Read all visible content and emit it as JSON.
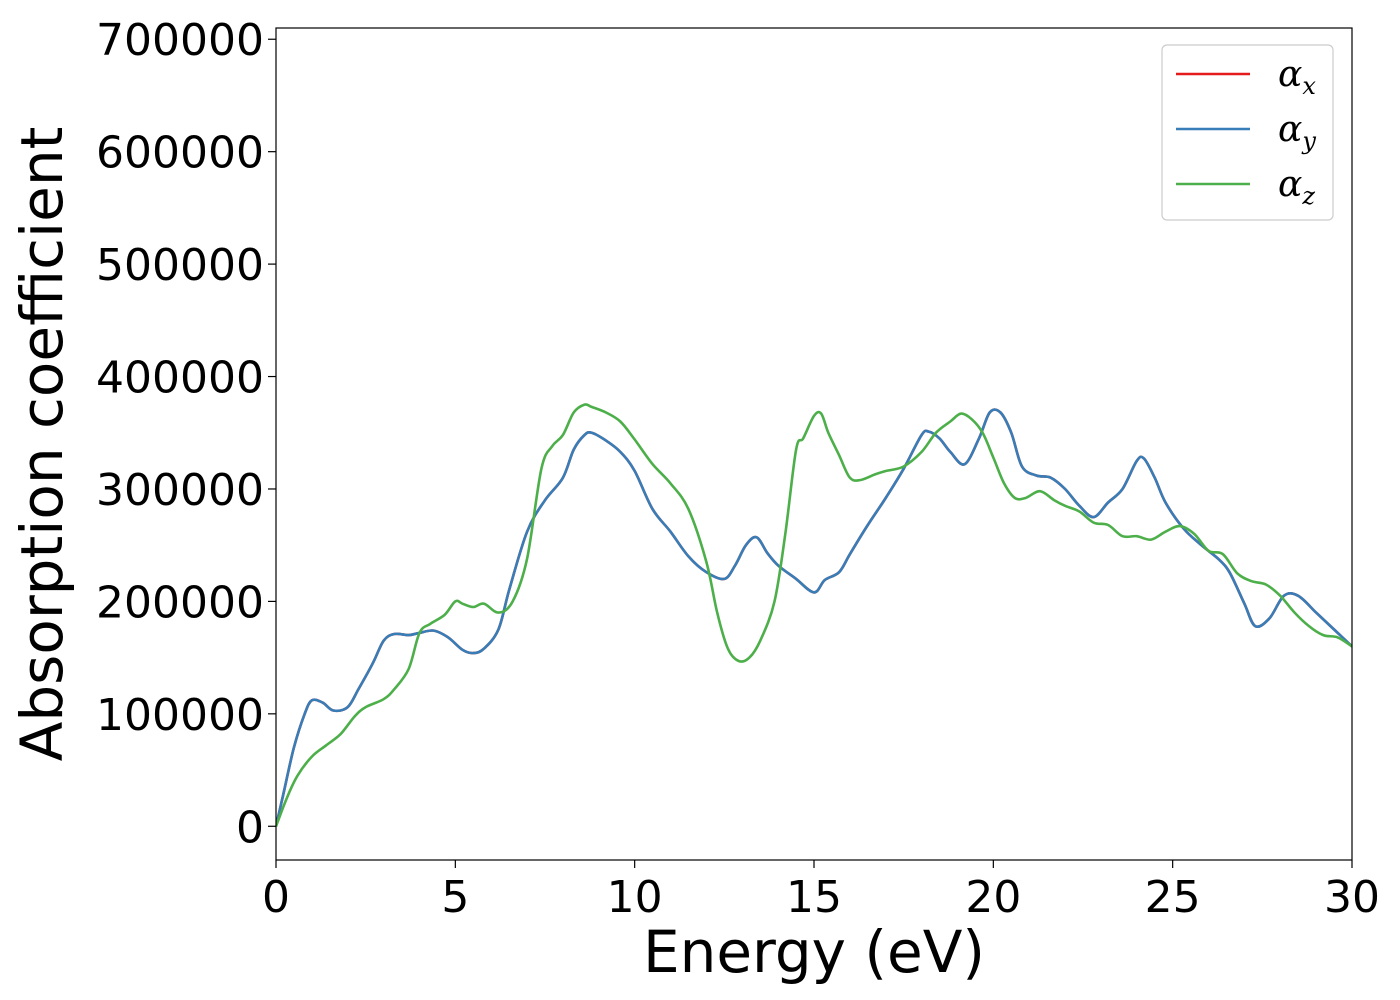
{
  "chart_data": {
    "type": "line",
    "xlabel": "Energy (eV)",
    "ylabel": "Absorption coefficient",
    "xlim": [
      0,
      30
    ],
    "ylim": [
      -30000,
      710000
    ],
    "x_ticks": [
      "0",
      "5",
      "10",
      "15",
      "20",
      "25",
      "30"
    ],
    "x_tick_values": [
      0,
      5,
      10,
      15,
      20,
      25,
      30
    ],
    "y_ticks": [
      "0",
      "100000",
      "200000",
      "300000",
      "400000",
      "500000",
      "600000",
      "700000"
    ],
    "y_tick_values": [
      0,
      100000,
      200000,
      300000,
      400000,
      500000,
      600000,
      700000
    ],
    "grid": false,
    "legend_position": "top-right",
    "series": [
      {
        "name": "α",
        "subscript": "x",
        "color": "#e41a1c",
        "x": [
          0,
          0.2,
          0.5,
          0.8,
          1.0,
          1.3,
          1.6,
          2.0,
          2.3,
          2.7,
          3.0,
          3.3,
          3.7,
          4.0,
          4.4,
          4.8,
          5.2,
          5.5,
          5.8,
          6.2,
          6.5,
          7.0,
          7.5,
          8.0,
          8.3,
          8.6,
          8.8,
          9.2,
          9.6,
          10.0,
          10.5,
          11.0,
          11.5,
          12.0,
          12.5,
          12.8,
          13.1,
          13.4,
          13.7,
          14.0,
          14.5,
          15.0,
          15.3,
          15.7,
          16.0,
          16.5,
          17.0,
          17.5,
          18.0,
          18.2,
          18.5,
          18.8,
          19.2,
          19.6,
          19.9,
          20.2,
          20.5,
          20.8,
          21.2,
          21.6,
          22.0,
          22.4,
          22.8,
          23.2,
          23.6,
          24.0,
          24.2,
          24.5,
          24.8,
          25.3,
          25.8,
          26.3,
          26.6,
          27.0,
          27.3,
          27.7,
          28.1,
          28.5,
          29.0,
          29.5,
          30.0
        ],
        "y": [
          0,
          28000,
          70000,
          100000,
          112000,
          110000,
          103000,
          106000,
          122000,
          145000,
          165000,
          171000,
          170000,
          172000,
          174000,
          168000,
          157000,
          154000,
          158000,
          175000,
          210000,
          262000,
          290000,
          310000,
          335000,
          348000,
          350000,
          343000,
          333000,
          316000,
          282000,
          262000,
          240000,
          226000,
          220000,
          232000,
          250000,
          257000,
          243000,
          232000,
          220000,
          208000,
          219000,
          226000,
          242000,
          268000,
          292000,
          318000,
          348000,
          351000,
          345000,
          333000,
          322000,
          345000,
          368000,
          368000,
          350000,
          320000,
          312000,
          310000,
          300000,
          285000,
          275000,
          288000,
          300000,
          325000,
          327000,
          310000,
          288000,
          265000,
          250000,
          237000,
          225000,
          198000,
          178000,
          185000,
          205000,
          205000,
          190000,
          175000,
          160000
        ]
      },
      {
        "name": "α",
        "subscript": "y",
        "color": "#377eb8",
        "x": [
          0,
          0.2,
          0.5,
          0.8,
          1.0,
          1.3,
          1.6,
          2.0,
          2.3,
          2.7,
          3.0,
          3.3,
          3.7,
          4.0,
          4.4,
          4.8,
          5.2,
          5.5,
          5.8,
          6.2,
          6.5,
          7.0,
          7.5,
          8.0,
          8.3,
          8.6,
          8.8,
          9.2,
          9.6,
          10.0,
          10.5,
          11.0,
          11.5,
          12.0,
          12.5,
          12.8,
          13.1,
          13.4,
          13.7,
          14.0,
          14.5,
          15.0,
          15.3,
          15.7,
          16.0,
          16.5,
          17.0,
          17.5,
          18.0,
          18.2,
          18.5,
          18.8,
          19.2,
          19.6,
          19.9,
          20.2,
          20.5,
          20.8,
          21.2,
          21.6,
          22.0,
          22.4,
          22.8,
          23.2,
          23.6,
          24.0,
          24.2,
          24.5,
          24.8,
          25.3,
          25.8,
          26.3,
          26.6,
          27.0,
          27.3,
          27.7,
          28.1,
          28.5,
          29.0,
          29.5,
          30.0
        ],
        "y": [
          0,
          28000,
          70000,
          100000,
          112000,
          110000,
          103000,
          106000,
          122000,
          145000,
          165000,
          171000,
          170000,
          172000,
          174000,
          168000,
          157000,
          154000,
          158000,
          175000,
          210000,
          262000,
          290000,
          310000,
          335000,
          348000,
          350000,
          343000,
          333000,
          316000,
          282000,
          262000,
          240000,
          226000,
          220000,
          232000,
          250000,
          257000,
          243000,
          232000,
          220000,
          208000,
          219000,
          226000,
          242000,
          268000,
          292000,
          318000,
          348000,
          351000,
          345000,
          333000,
          322000,
          345000,
          368000,
          368000,
          350000,
          320000,
          312000,
          310000,
          300000,
          285000,
          275000,
          288000,
          300000,
          325000,
          327000,
          310000,
          288000,
          265000,
          250000,
          237000,
          225000,
          198000,
          178000,
          185000,
          205000,
          205000,
          190000,
          175000,
          160000
        ]
      },
      {
        "name": "α",
        "subscript": "z",
        "color": "#4daf4a",
        "x": [
          0,
          0.3,
          0.6,
          1.0,
          1.4,
          1.8,
          2.2,
          2.5,
          3.0,
          3.3,
          3.7,
          4.0,
          4.3,
          4.7,
          5.0,
          5.2,
          5.5,
          5.8,
          6.2,
          6.6,
          7.0,
          7.4,
          7.7,
          8.0,
          8.3,
          8.6,
          8.8,
          9.2,
          9.6,
          10.0,
          10.5,
          11.0,
          11.5,
          12.0,
          12.3,
          12.6,
          12.9,
          13.2,
          13.5,
          13.9,
          14.2,
          14.5,
          14.7,
          15.0,
          15.2,
          15.4,
          15.7,
          16.0,
          16.3,
          16.7,
          17.0,
          17.5,
          18.0,
          18.4,
          18.8,
          19.1,
          19.4,
          19.7,
          20.0,
          20.3,
          20.6,
          20.9,
          21.3,
          21.7,
          22.0,
          22.4,
          22.8,
          23.2,
          23.6,
          24.0,
          24.4,
          24.8,
          25.2,
          25.6,
          26.0,
          26.4,
          26.8,
          27.2,
          27.6,
          28.0,
          28.4,
          28.8,
          29.2,
          29.6,
          30.0
        ],
        "y": [
          0,
          25000,
          45000,
          62000,
          72000,
          82000,
          98000,
          106000,
          113000,
          122000,
          140000,
          172000,
          180000,
          188000,
          200000,
          198000,
          195000,
          198000,
          190000,
          200000,
          238000,
          318000,
          338000,
          348000,
          368000,
          375000,
          373000,
          368000,
          360000,
          344000,
          322000,
          305000,
          282000,
          235000,
          190000,
          158000,
          147000,
          150000,
          165000,
          200000,
          260000,
          335000,
          345000,
          365000,
          367000,
          350000,
          330000,
          310000,
          308000,
          313000,
          316000,
          320000,
          333000,
          350000,
          360000,
          367000,
          362000,
          350000,
          328000,
          305000,
          292000,
          292000,
          298000,
          290000,
          285000,
          280000,
          270000,
          268000,
          258000,
          258000,
          255000,
          262000,
          267000,
          260000,
          245000,
          242000,
          225000,
          218000,
          215000,
          205000,
          190000,
          178000,
          170000,
          168000,
          160000
        ]
      }
    ]
  }
}
